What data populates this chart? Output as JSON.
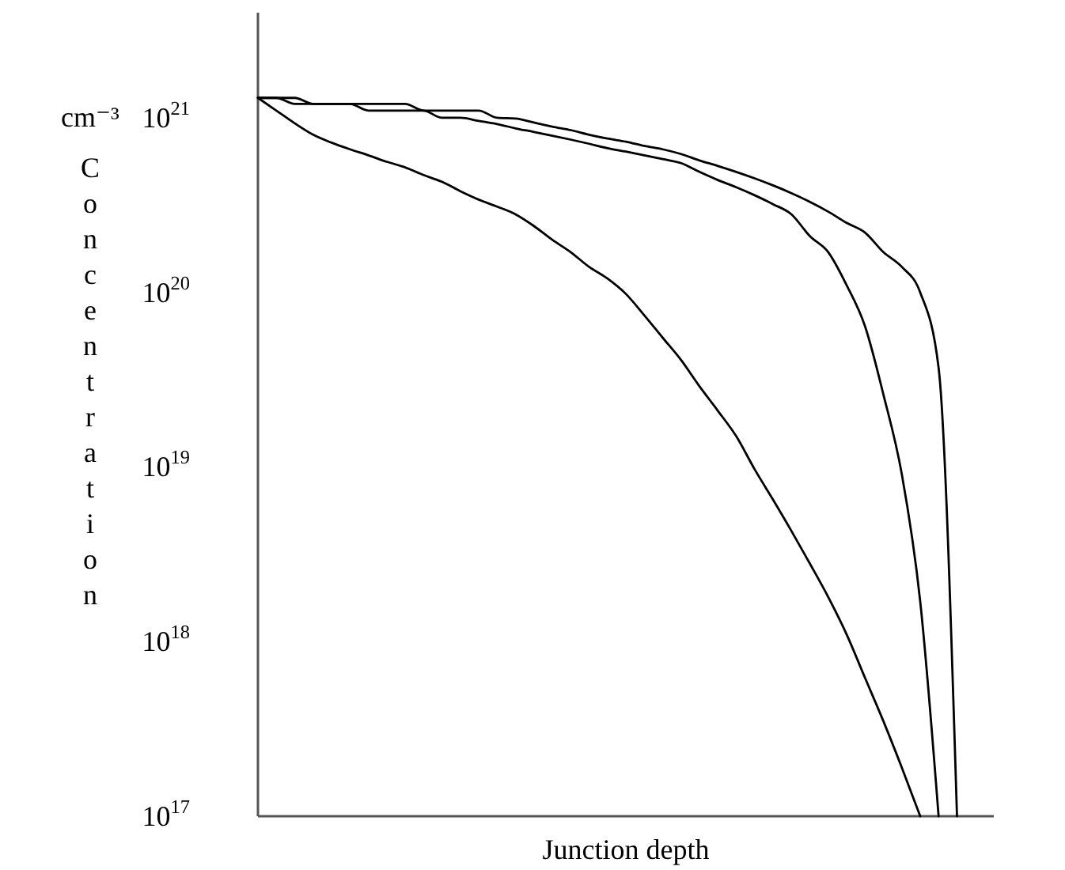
{
  "chart_data": {
    "type": "line",
    "xlabel": "Junction depth",
    "ylabel": "Concentration",
    "annotations": [
      "cm⁻³"
    ],
    "log": "y",
    "categories": [
      null,
      null,
      null,
      null,
      null,
      null,
      null,
      null,
      null,
      null,
      null,
      null,
      null,
      null,
      null,
      null,
      null,
      null,
      null,
      null,
      null,
      null,
      null,
      null,
      null,
      null,
      null,
      null,
      null,
      null,
      null,
      null,
      null,
      null,
      null,
      null,
      null,
      null,
      null,
      null,
      null
    ],
    "ylim": [
      1e+17,
      4e+21
    ],
    "yticks": [
      {
        "value": 1e+17,
        "label": "10$^{17}$"
      },
      {
        "value": 1e+18,
        "label": "10$^{18}$"
      },
      {
        "value": 1e+19,
        "label": "10$^{19}$"
      },
      {
        "value": 1e+20,
        "label": "10$^{20}$"
      },
      {
        "value": 1e+21,
        "label": "10$^{21}$"
      }
    ],
    "series": [
      {
        "color": "#000000",
        "values": [
          1.3e+21,
          1.1e+21,
          9.3e+20,
          8e+20,
          7.2e+20,
          6.6e+20,
          6.1e+20,
          5.6e+20,
          5.2e+20,
          4.7e+20,
          4.3e+20,
          3.8e+20,
          3.4e+20,
          3.1e+20,
          2.8e+20,
          2.4e+20,
          2e+20,
          1.7e+20,
          1.4e+20,
          1.2e+20,
          9.8e+19,
          7.4e+19,
          5.5e+19,
          4.1e+19,
          2.9e+19,
          2.1e+19,
          1.5e+19,
          9.7e+18,
          6.5e+18,
          4.3e+18,
          2.8e+18,
          1.8e+18,
          1.1e+18,
          6.2e+17,
          3.5e+17,
          1.9e+17,
          1e+17,
          null,
          null,
          null,
          null
        ]
      },
      {
        "color": "#000000",
        "values": [
          1.3e+21,
          1.3e+21,
          1.2e+21,
          1.2e+21,
          1.2e+21,
          1.2e+21,
          1.1e+21,
          1.1e+21,
          1.1e+21,
          1.1e+21,
          1e+21,
          1e+21,
          9.6e+20,
          9.2e+20,
          8.7e+20,
          8.3e+20,
          7.9e+20,
          7.5e+20,
          7.1e+20,
          6.7e+20,
          6.4e+20,
          6.1e+20,
          5.8e+20,
          5.5e+20,
          4.9e+20,
          4.4e+20,
          4e+20,
          3.6e+20,
          3.2e+20,
          2.8e+20,
          2.1e+20,
          1.7e+20,
          1.1e+20,
          6.4e+19,
          2.6e+19,
          9.1e+18,
          1.7e+18,
          1e+17,
          null,
          null,
          null
        ]
      },
      {
        "color": "#000000",
        "values": [
          1.3e+21,
          1.3e+21,
          1.3e+21,
          1.2e+21,
          1.2e+21,
          1.2e+21,
          1.2e+21,
          1.2e+21,
          1.2e+21,
          1.1e+21,
          1.1e+21,
          1.1e+21,
          1.1e+21,
          1e+21,
          9.9e+20,
          9.4e+20,
          8.9e+20,
          8.5e+20,
          8e+20,
          7.6e+20,
          7.3e+20,
          6.9e+20,
          6.6e+20,
          6.2e+20,
          5.7e+20,
          5.3e+20,
          4.9e+20,
          4.5e+20,
          4.1e+20,
          3.7e+20,
          3.3e+20,
          2.9e+20,
          2.5e+20,
          2.2e+20,
          1.7e+20,
          1.4e+20,
          1e+20,
          3.7e+19,
          1e+17,
          null,
          null
        ]
      }
    ]
  }
}
